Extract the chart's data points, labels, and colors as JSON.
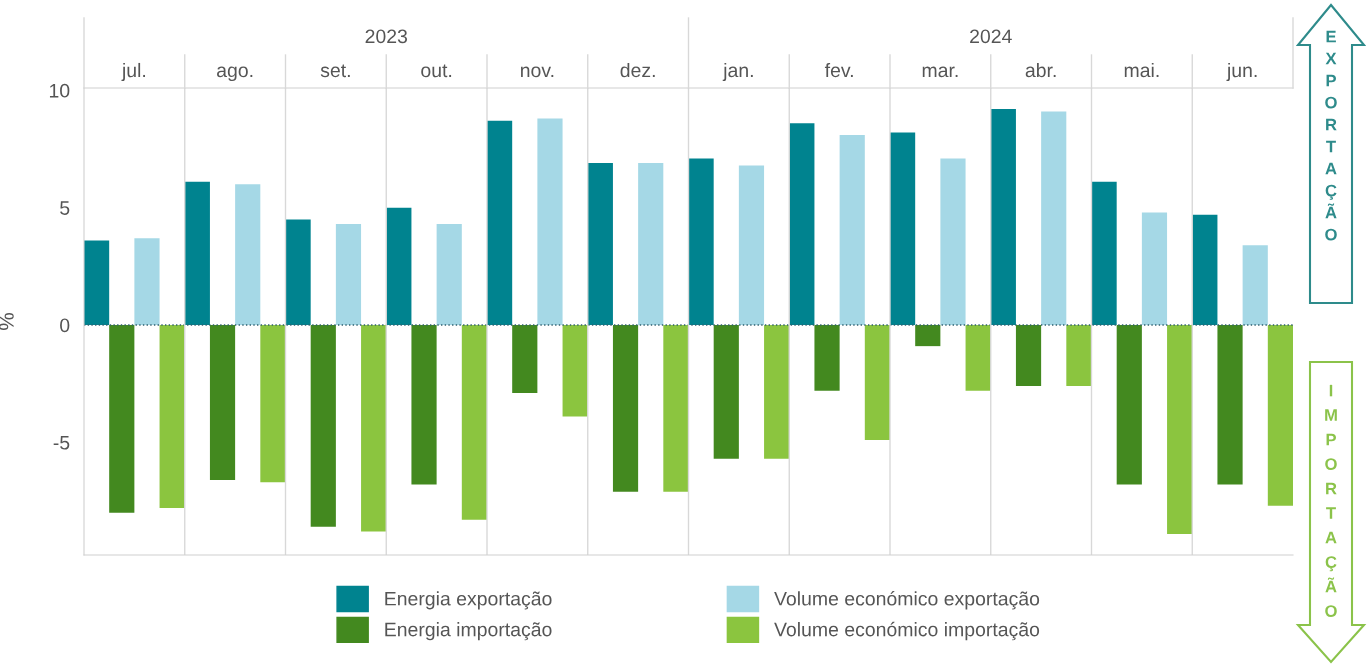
{
  "chart_data": {
    "type": "bar",
    "ylabel": "%",
    "categories": [
      "jul.",
      "ago.",
      "set.",
      "out.",
      "nov.",
      "dez.",
      "jan.",
      "fev.",
      "mar.",
      "abr.",
      "mai.",
      "jun."
    ],
    "series": [
      {
        "name": "Energia exportação",
        "color": "#00838f",
        "values": [
          3.6,
          6.1,
          4.5,
          5.0,
          8.7,
          6.9,
          7.1,
          8.6,
          8.2,
          9.2,
          6.1,
          4.7
        ]
      },
      {
        "name": "Energia importação",
        "color": "#43891f",
        "values": [
          -8.0,
          -6.6,
          -8.6,
          -6.8,
          -2.9,
          -7.1,
          -5.7,
          -2.8,
          -0.9,
          -2.6,
          -6.8,
          -6.8
        ]
      },
      {
        "name": "Volume económico exportação",
        "color": "#a5d8e6",
        "values": [
          3.7,
          6.0,
          4.3,
          4.3,
          8.8,
          6.9,
          6.8,
          8.1,
          7.1,
          9.1,
          4.8,
          3.4
        ]
      },
      {
        "name": "Volume económico importação",
        "color": "#8bc53f",
        "values": [
          -7.8,
          -6.7,
          -8.8,
          -8.3,
          -3.9,
          -7.1,
          -5.7,
          -4.9,
          -2.8,
          -2.6,
          -8.9,
          -7.7
        ]
      }
    ],
    "ylim": [
      -9.8,
      10.1
    ],
    "yticks": [
      {
        "value": -5,
        "label": "-5"
      },
      0,
      5,
      10
    ],
    "ref_lines": [
      {
        "axis": "y",
        "value": 0,
        "color": "#2f5f6f",
        "line_style": "dotted"
      }
    ],
    "annotations": [
      "2023",
      "2024",
      "EXPORTAÇÃO",
      "IMPORTAÇÃO"
    ],
    "legend": "bottom",
    "grid": false
  }
}
